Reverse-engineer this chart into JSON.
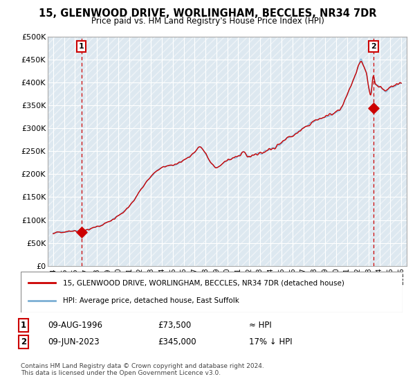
{
  "title": "15, GLENWOOD DRIVE, WORLINGHAM, BECCLES, NR34 7DR",
  "subtitle": "Price paid vs. HM Land Registry's House Price Index (HPI)",
  "ylim": [
    0,
    500000
  ],
  "yticks": [
    0,
    50000,
    100000,
    150000,
    200000,
    250000,
    300000,
    350000,
    400000,
    450000,
    500000
  ],
  "ytick_labels": [
    "£0",
    "£50K",
    "£100K",
    "£150K",
    "£200K",
    "£250K",
    "£300K",
    "£350K",
    "£400K",
    "£450K",
    "£500K"
  ],
  "sale1_date": 1996.6,
  "sale1_price": 73500,
  "sale1_label": "1",
  "sale2_date": 2023.44,
  "sale2_price": 345000,
  "sale2_label": "2",
  "hpi_color": "#7bafd4",
  "sale_color": "#cc0000",
  "dot_color": "#cc0000",
  "vline_color": "#cc0000",
  "grid_color": "#cccccc",
  "bg_color": "#dde8f0",
  "legend_line1": "15, GLENWOOD DRIVE, WORLINGHAM, BECCLES, NR34 7DR (detached house)",
  "legend_line2": "HPI: Average price, detached house, East Suffolk",
  "annotation1_date": "09-AUG-1996",
  "annotation1_price": "£73,500",
  "annotation1_hpi": "≈ HPI",
  "annotation2_date": "09-JUN-2023",
  "annotation2_price": "£345,000",
  "annotation2_hpi": "17% ↓ HPI",
  "footer": "Contains HM Land Registry data © Crown copyright and database right 2024.\nThis data is licensed under the Open Government Licence v3.0.",
  "xlim_start": 1993.5,
  "xlim_end": 2026.5
}
